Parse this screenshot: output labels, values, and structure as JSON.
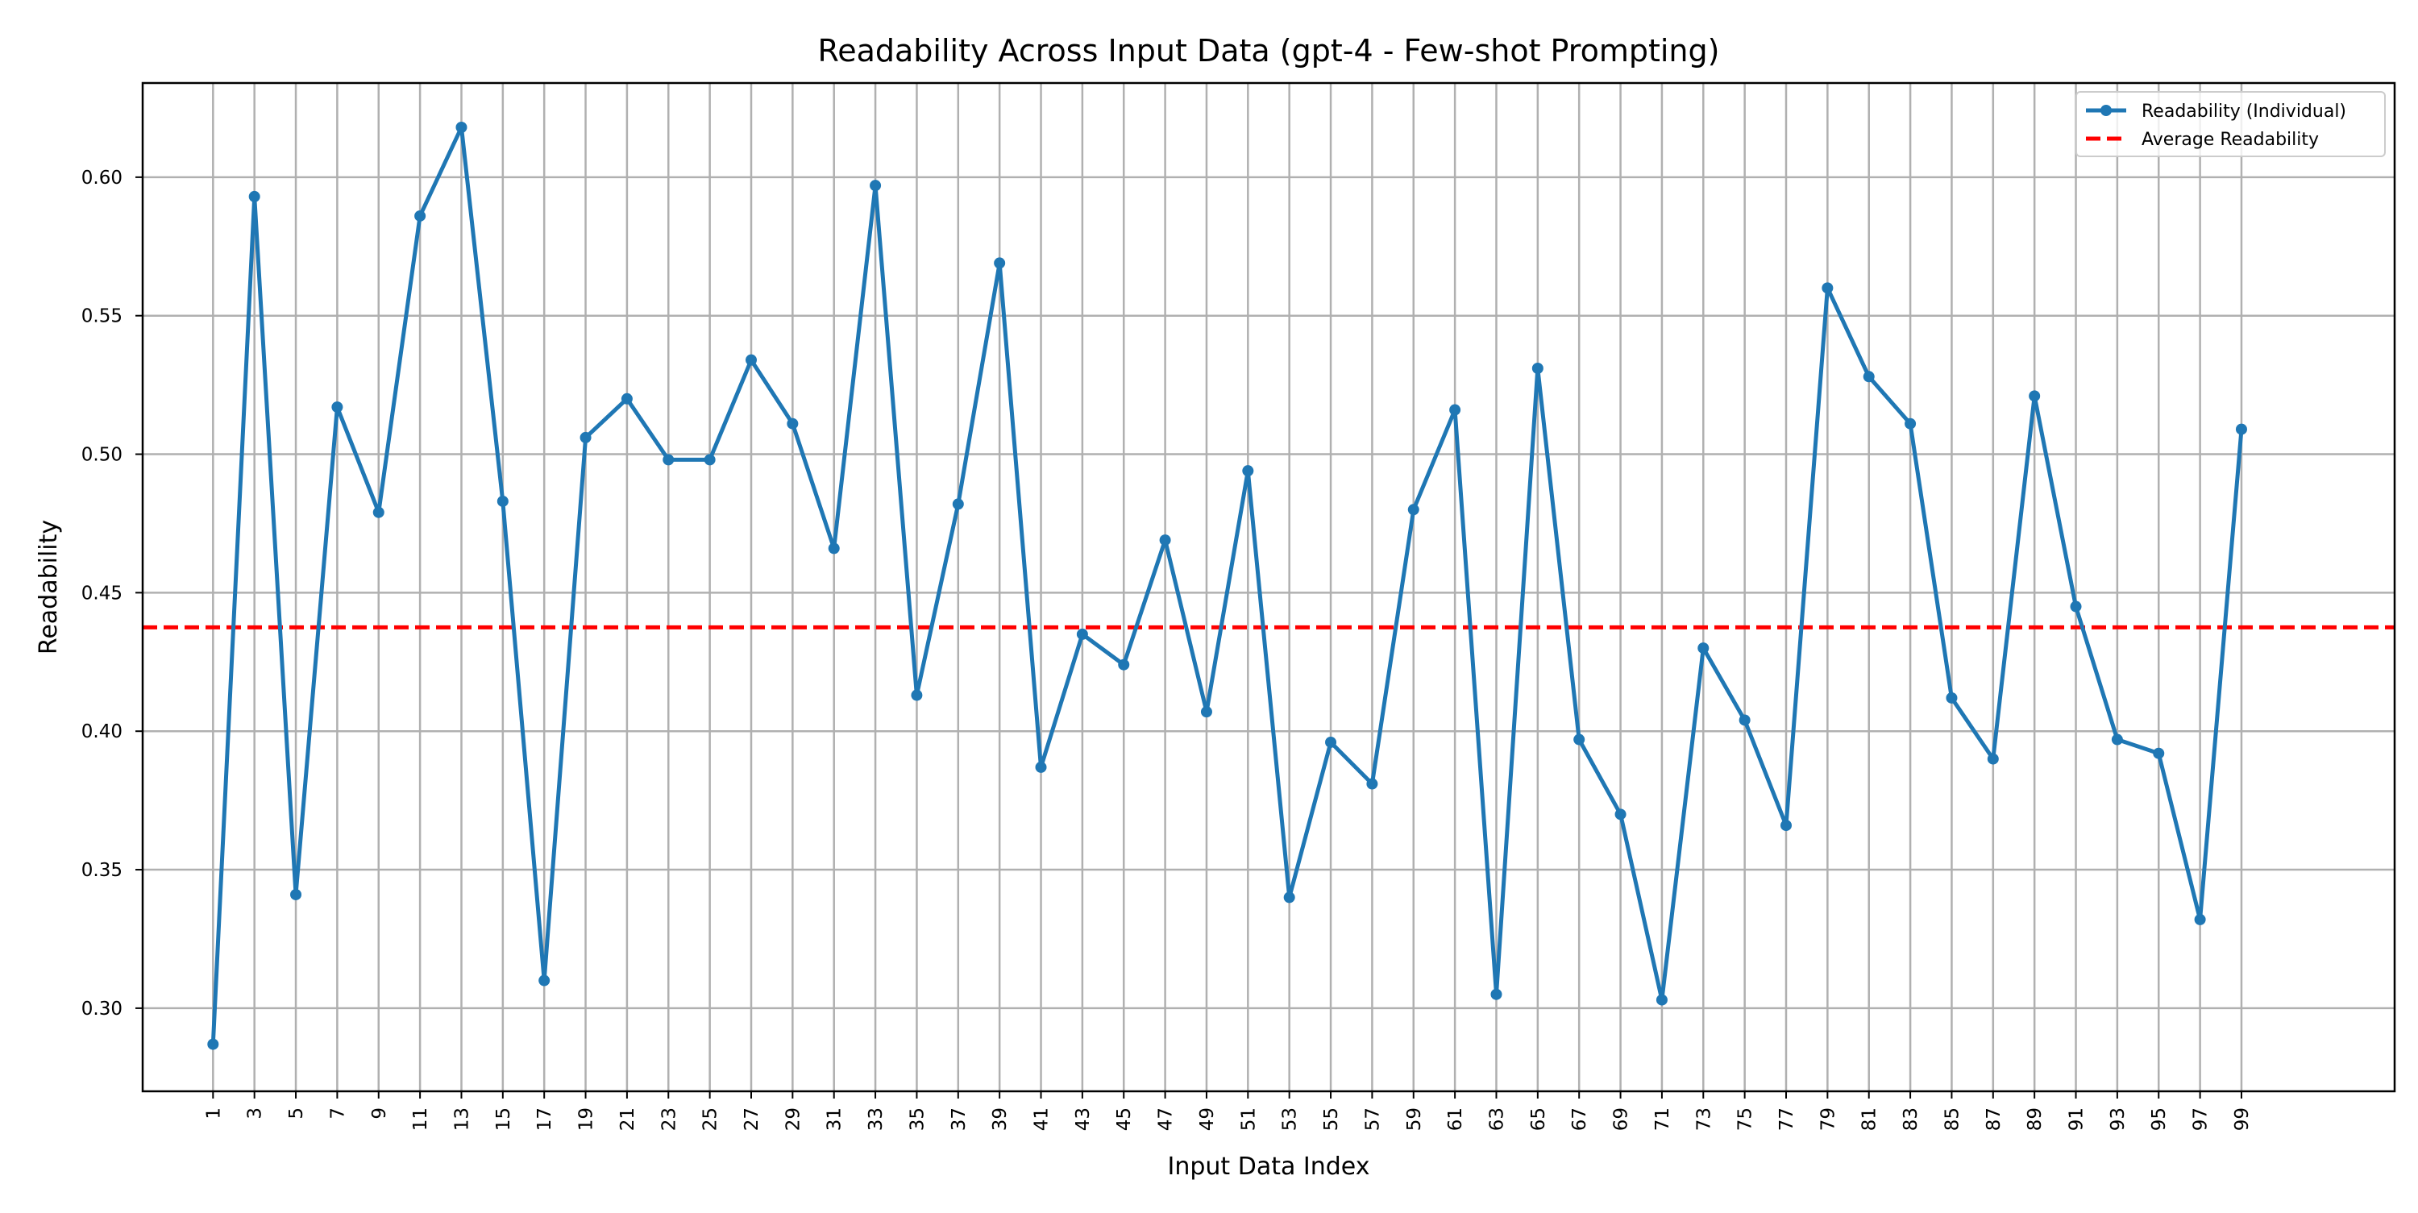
{
  "chart_data": {
    "type": "line",
    "title": "Readability Across Input Data (gpt-4 - Few-shot Prompting)",
    "xlabel": "Input Data Index",
    "ylabel": "Readability",
    "xlim": [
      -2.4,
      106.4
    ],
    "ylim": [
      0.27,
      0.634
    ],
    "x_ticks": [
      1,
      3,
      5,
      7,
      9,
      11,
      13,
      15,
      17,
      19,
      21,
      23,
      25,
      27,
      29,
      31,
      33,
      35,
      37,
      39,
      41,
      43,
      45,
      47,
      49,
      51,
      53,
      55,
      57,
      59,
      61,
      63,
      65,
      67,
      69,
      71,
      73,
      75,
      77,
      79,
      81,
      83,
      85,
      87,
      89,
      91,
      93,
      95,
      97,
      99
    ],
    "y_ticks": [
      0.3,
      0.35,
      0.4,
      0.45,
      0.5,
      0.55,
      0.6
    ],
    "y_tick_labels": [
      "0.30",
      "0.35",
      "0.40",
      "0.45",
      "0.50",
      "0.55",
      "0.60"
    ],
    "grid": true,
    "legend_position": "top-right",
    "series": [
      {
        "name": "Readability (Individual)",
        "color": "#1f77b4",
        "style": "solid-with-markers",
        "x": [
          1,
          3,
          5,
          7,
          9,
          11,
          13,
          15,
          17,
          19,
          21,
          23,
          25,
          27,
          29,
          31,
          33,
          35,
          37,
          39,
          41,
          43,
          45,
          47,
          49,
          51,
          53,
          55,
          57,
          59,
          61,
          63,
          65,
          67,
          69,
          71,
          73,
          75,
          77,
          79,
          81,
          83,
          85,
          87,
          89,
          91,
          93,
          95,
          97,
          99
        ],
        "values": [
          0.287,
          0.593,
          0.341,
          0.517,
          0.479,
          0.586,
          0.618,
          0.483,
          0.31,
          0.506,
          0.52,
          0.498,
          0.498,
          0.534,
          0.511,
          0.466,
          0.597,
          0.413,
          0.482,
          0.569,
          0.387,
          0.435,
          0.424,
          0.469,
          0.407,
          0.494,
          0.34,
          0.396,
          0.381,
          0.48,
          0.516,
          0.305,
          0.531,
          0.397,
          0.37,
          0.303,
          0.43,
          0.404,
          0.366,
          0.56,
          0.528,
          0.511,
          0.412,
          0.39,
          0.521,
          0.445,
          0.397,
          0.392,
          0.332,
          0.509
        ]
      },
      {
        "name": "Average Readability",
        "color": "#ff0000",
        "style": "dashed",
        "value": 0.4375
      }
    ]
  }
}
